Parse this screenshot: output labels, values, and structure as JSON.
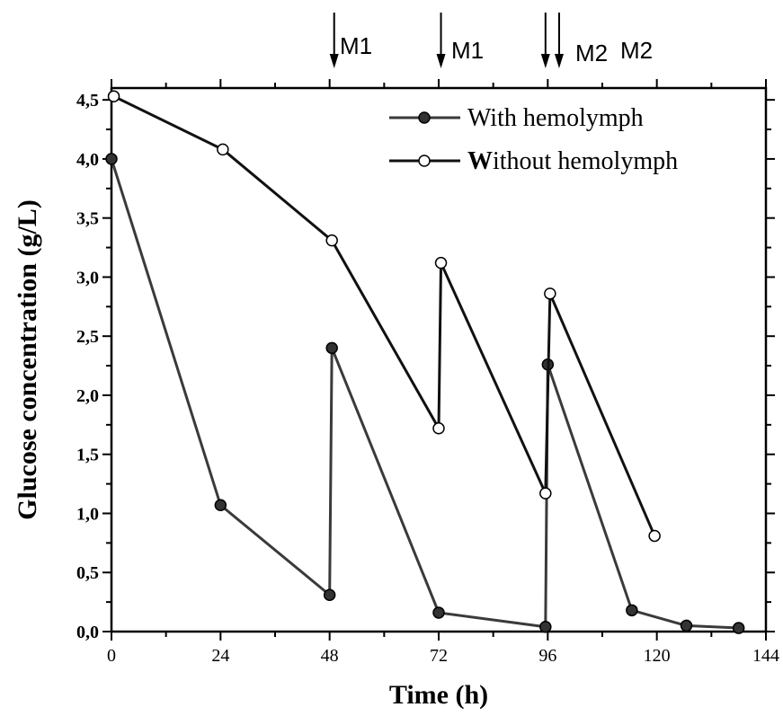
{
  "chart_data": {
    "type": "line",
    "title": "",
    "xlabel": "Time (h)",
    "ylabel": "Glucose concentration (g/L)",
    "xlim": [
      0,
      144
    ],
    "ylim": [
      0,
      4.6
    ],
    "xticks": [
      0,
      24,
      48,
      72,
      96,
      120,
      144
    ],
    "xtick_labels": [
      "0",
      "24",
      "48",
      "72",
      "96",
      "120",
      "144"
    ],
    "yticks": [
      0,
      0.5,
      1.0,
      1.5,
      2.0,
      2.5,
      3.0,
      3.5,
      4.0,
      4.5
    ],
    "ytick_labels": [
      "0,0",
      "0,5",
      "1,0",
      "1,5",
      "2,0",
      "2,5",
      "3,0",
      "3,5",
      "4,0",
      "4,5"
    ],
    "grid": false,
    "legend_position": "top-right",
    "series": [
      {
        "name": "With hemolymph",
        "legend_prefix": "",
        "legend_rest": "With hemolymph",
        "marker": "filled-circle",
        "color": "#3a3a3a",
        "x": [
          0,
          24,
          48,
          48.5,
          72,
          95.5,
          96,
          114.5,
          126.5,
          138
        ],
        "y": [
          4.0,
          1.07,
          0.31,
          2.4,
          0.16,
          0.04,
          2.26,
          0.18,
          0.05,
          0.03
        ]
      },
      {
        "name": "Without hemolymph",
        "legend_prefix": "W",
        "legend_rest": "ithout hemolymph",
        "marker": "open-circle",
        "color": "#111111",
        "x": [
          0.5,
          24.5,
          48.5,
          72,
          72.5,
          95.5,
          96.5,
          119.5
        ],
        "y": [
          4.53,
          4.08,
          3.31,
          1.72,
          3.12,
          1.17,
          2.86,
          0.81
        ]
      }
    ],
    "annotations": [
      {
        "text": "M1",
        "x": 49,
        "arrows_x": [
          49
        ]
      },
      {
        "text": "M1",
        "x": 72.5,
        "arrows_x": [
          72.5
        ]
      },
      {
        "text": "M2",
        "x": 95.5,
        "arrows_x": [
          95.5
        ]
      },
      {
        "text": "M2",
        "x": 98.5,
        "arrows_x": [
          98.5
        ]
      }
    ]
  }
}
